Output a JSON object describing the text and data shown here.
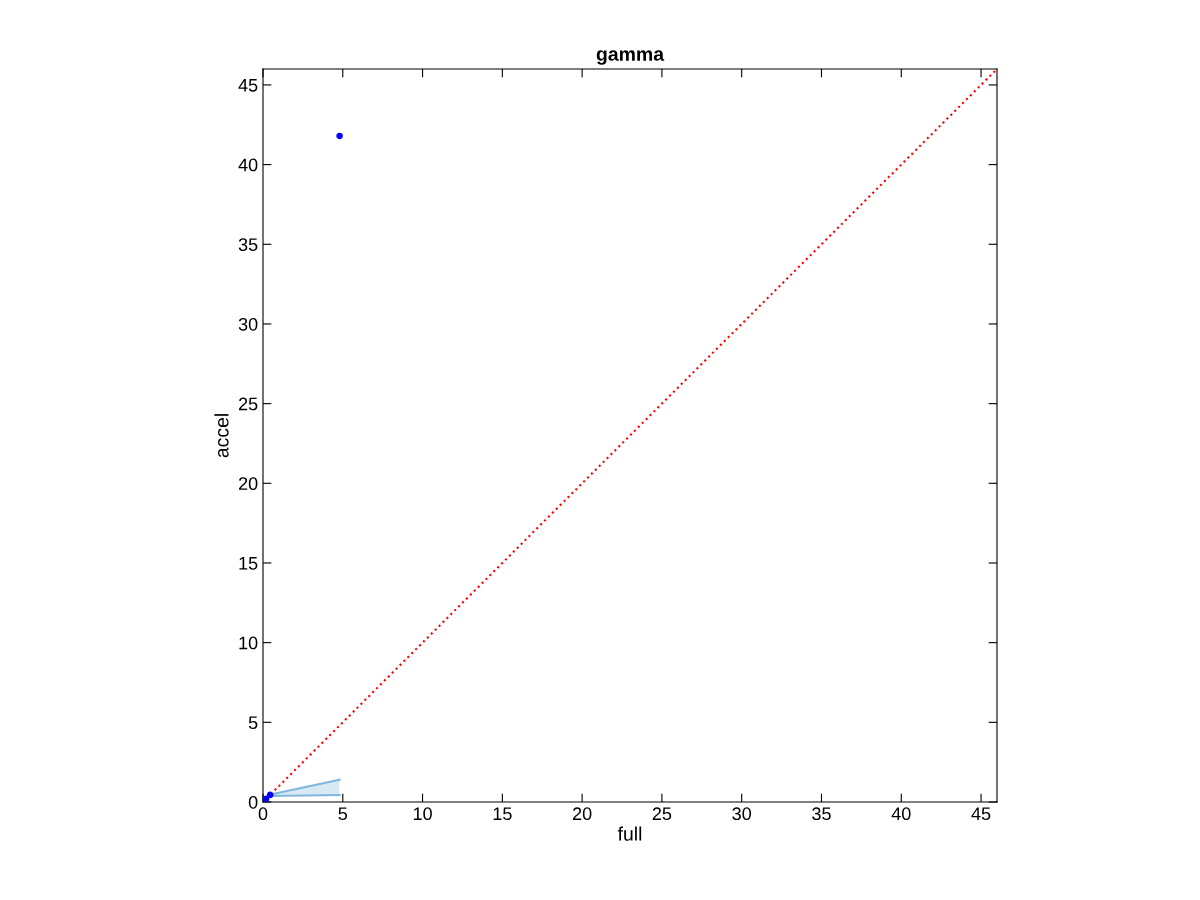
{
  "chart_data": {
    "type": "scatter",
    "title": "gamma",
    "xlabel": "full",
    "ylabel": "accel",
    "xlim": [
      0,
      46
    ],
    "ylim": [
      0,
      46
    ],
    "xticks": [
      0,
      5,
      10,
      15,
      20,
      25,
      30,
      35,
      40,
      45
    ],
    "yticks": [
      0,
      5,
      10,
      15,
      20,
      25,
      30,
      35,
      40,
      45
    ],
    "grid": false,
    "legend": false,
    "series": [
      {
        "type": "line",
        "color": "#ff0000",
        "line_style": "dotted",
        "marker": "none",
        "x": [
          0,
          46
        ],
        "values": [
          0,
          46
        ]
      },
      {
        "type": "line",
        "color": "#7fb6dc",
        "line_style": "solid",
        "marker": "none",
        "x": [
          0.4,
          4.8
        ],
        "values": [
          0.38,
          0.44
        ],
        "lower": [
          0.38,
          0.44
        ],
        "upper": [
          0.45,
          1.4
        ]
      },
      {
        "type": "line",
        "color": "#7fb6dc",
        "line_style": "solid",
        "marker": "none",
        "x": [
          0.4,
          4.8
        ],
        "values": [
          0.45,
          1.4
        ]
      },
      {
        "color": "#0000ff",
        "marker": "circle",
        "x": [
          0.2,
          0.45,
          4.8
        ],
        "values": [
          0.2,
          0.45,
          41.8
        ]
      }
    ]
  }
}
